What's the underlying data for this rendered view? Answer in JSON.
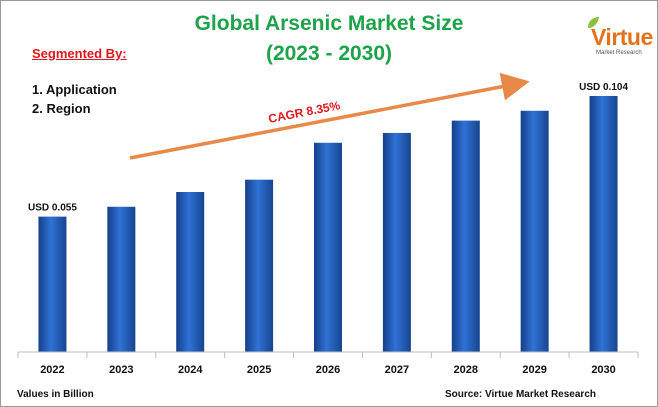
{
  "header": {
    "title_line1": "Global Arsenic Market Size",
    "title_line2": "(2023 - 2030)"
  },
  "segmentation": {
    "label": "Segmented By:",
    "items": [
      "1. Application",
      "2. Region"
    ]
  },
  "logo": {
    "word": "Virtue",
    "subtitle": "Market Research"
  },
  "footer": {
    "left": "Values in Billion",
    "right": "Source: Virtue Market Research"
  },
  "colors": {
    "title": "#1fa34a",
    "bar": "#1f5fc4",
    "arrow": "#e8894a",
    "cagr": "#e0161b",
    "accent_logo": "#e2731b"
  },
  "chart_data": {
    "type": "bar",
    "title": "Global Arsenic Market Size (2023 - 2030)",
    "categories": [
      "2022",
      "2023",
      "2024",
      "2025",
      "2026",
      "2027",
      "2028",
      "2029",
      "2030"
    ],
    "series": [
      {
        "values": [
          0.055,
          0.059,
          0.065,
          0.07,
          0.085,
          0.089,
          0.094,
          0.098,
          0.104
        ]
      }
    ],
    "ylim": [
      0,
      0.104
    ],
    "data_labels": [
      {
        "index": 0,
        "text": "USD 0.055"
      },
      {
        "index": 8,
        "text": "USD 0.104"
      }
    ],
    "annotation": "CAGR 8.35%",
    "grid": false,
    "legend": "none"
  }
}
